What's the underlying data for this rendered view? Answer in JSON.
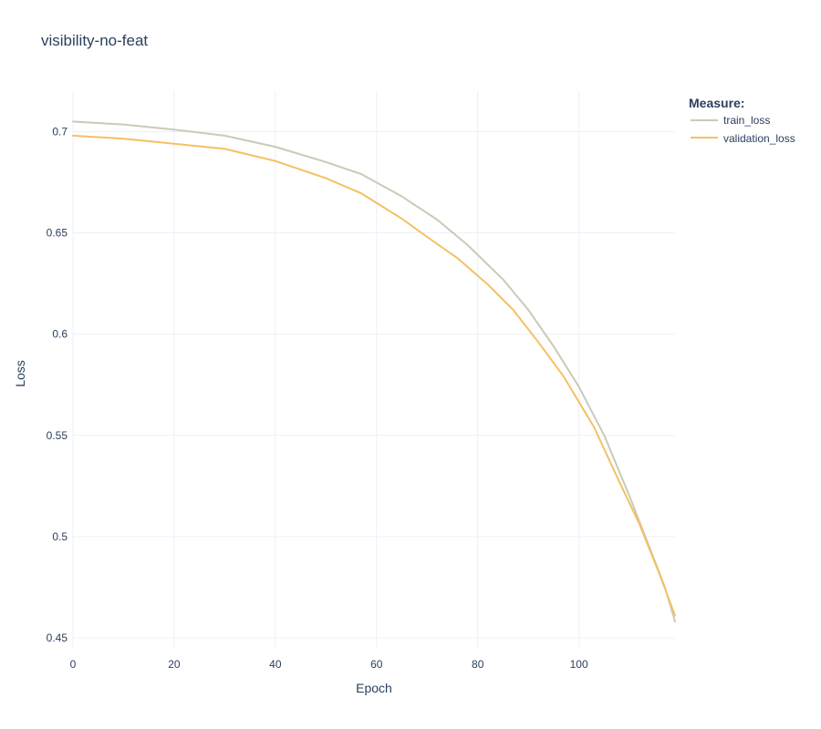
{
  "chart_data": {
    "type": "line",
    "title": "visibility-no-feat",
    "xlabel": "Epoch",
    "ylabel": "Loss",
    "xlim": [
      0,
      119
    ],
    "ylim": [
      0.4455,
      0.72
    ],
    "xticks": [
      0,
      20,
      40,
      60,
      80,
      100
    ],
    "xtick_labels": [
      "0",
      "20",
      "40",
      "60",
      "80",
      "100"
    ],
    "yticks": [
      0.45,
      0.5,
      0.55,
      0.6,
      0.65,
      0.7
    ],
    "ytick_labels": [
      "0.45",
      "0.5",
      "0.55",
      "0.6",
      "0.65",
      "0.7"
    ],
    "grid": true,
    "legend": {
      "title": "Measure:",
      "position": "top-right"
    },
    "series": [
      {
        "name": "train_loss",
        "color": "#c8cbb8",
        "x": [
          0,
          10,
          20,
          30,
          40,
          50,
          57,
          65,
          72,
          78,
          85,
          90,
          95,
          100,
          105,
          110,
          115,
          117,
          119
        ],
        "y": [
          0.705,
          0.7035,
          0.701,
          0.698,
          0.6925,
          0.685,
          0.679,
          0.668,
          0.6565,
          0.644,
          0.627,
          0.612,
          0.594,
          0.574,
          0.55,
          0.52,
          0.488,
          0.475,
          0.458
        ]
      },
      {
        "name": "validation_loss",
        "color": "#f5c063",
        "x": [
          0,
          10,
          20,
          30,
          40,
          50,
          57,
          65,
          70,
          76,
          82,
          87,
          92,
          97,
          103,
          108,
          112,
          116,
          119
        ],
        "y": [
          0.698,
          0.6965,
          0.694,
          0.6915,
          0.6855,
          0.677,
          0.6695,
          0.657,
          0.648,
          0.6375,
          0.6245,
          0.612,
          0.596,
          0.579,
          0.554,
          0.527,
          0.506,
          0.481,
          0.461
        ]
      }
    ]
  }
}
